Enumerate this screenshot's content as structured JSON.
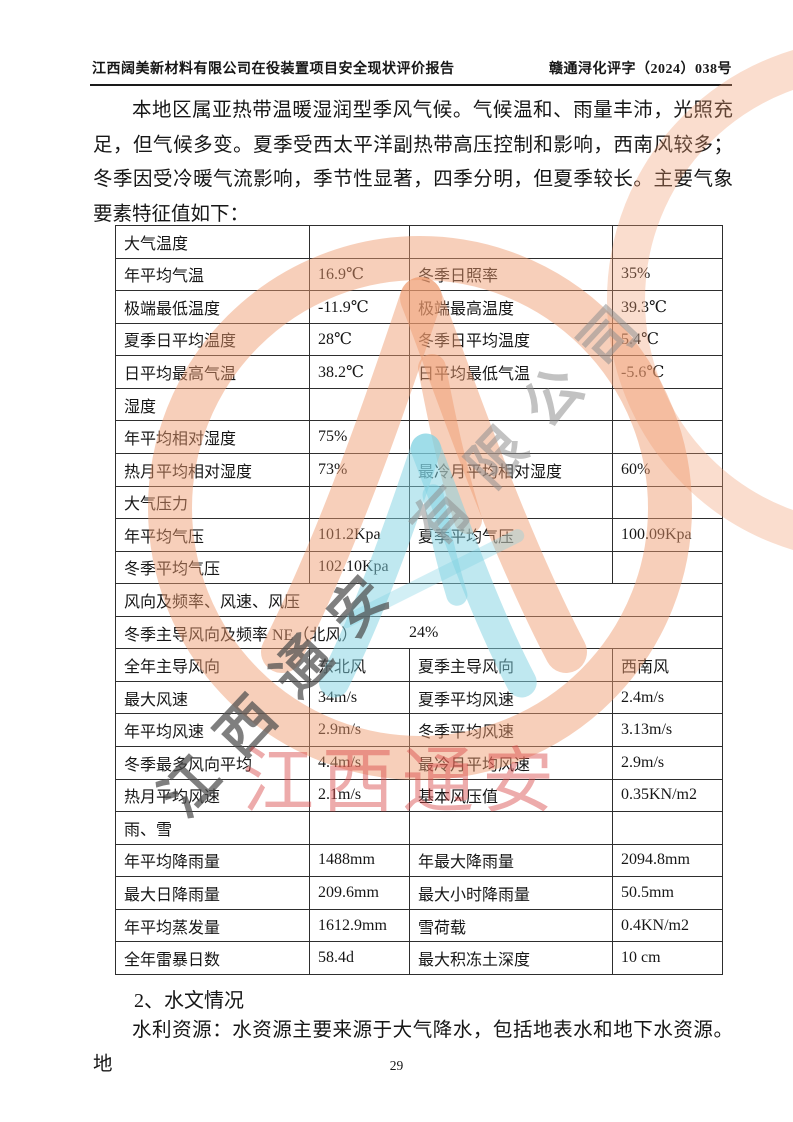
{
  "header": {
    "left": "江西阔美新材料有限公司在役装置项目安全现状评价报告",
    "right": "赣通浔化评字（2024）038号"
  },
  "paragraph": "本地区属亚热带温暖湿润型季风气候。气候温和、雨量丰沛，光照充足，但气候多变。夏季受西太平洋副热带高压控制和影响，西南风较多；冬季因受冷暖气流影响，季节性显著，四季分明，但夏季较长。主要气象要素特征值如下：",
  "table": {
    "rows": [
      {
        "cells": [
          "大气温度",
          "",
          "",
          ""
        ]
      },
      {
        "cells": [
          "年平均气温",
          "16.9℃",
          "冬季日照率",
          "35%"
        ],
        "indent3": true,
        "indent4": true
      },
      {
        "cells": [
          "极端最低温度",
          "-11.9℃",
          "极端最高温度",
          "39.3℃"
        ],
        "indent3": true,
        "indent4": true
      },
      {
        "cells": [
          "夏季日平均温度",
          "28℃",
          "冬季日平均温度",
          "5.4℃"
        ],
        "indent3": true,
        "indent4": true
      },
      {
        "cells": [
          "日平均最高气温",
          "38.2℃",
          "日平均最低气温",
          "-5.6℃"
        ],
        "indent3": true,
        "indent4": true
      },
      {
        "cells": [
          "湿度",
          "",
          "",
          ""
        ]
      },
      {
        "cells": [
          "年平均相对湿度",
          "75%",
          "",
          ""
        ]
      },
      {
        "cells": [
          "热月平均相对湿度",
          "73%",
          "最冷月平均相对湿度",
          "60%"
        ]
      },
      {
        "cells": [
          "大气压力",
          "",
          "",
          ""
        ]
      },
      {
        "cells": [
          "年平均气压",
          "101.2Kpa",
          "夏季平均气压",
          "100.09Kpa"
        ]
      },
      {
        "cells": [
          "冬季平均气压",
          "102.10Kpa",
          "",
          ""
        ]
      },
      {
        "label": "风向及频率、风速、风压"
      },
      {
        "label": "冬季主导风向及频率 NE（北风）",
        "value": "24%"
      },
      {
        "cells": [
          "全年主导风向",
          "东北风",
          "夏季主导风向",
          "西南风"
        ]
      },
      {
        "cells": [
          "最大风速",
          "34m/s",
          "夏季平均风速",
          "2.4m/s"
        ]
      },
      {
        "cells": [
          "年平均风速",
          "2.9m/s",
          "冬季平均风速",
          "3.13m/s"
        ]
      },
      {
        "cells": [
          "冬季最多风向平均",
          "4.4m/s",
          "最冷月平均风速",
          "2.9m/s"
        ]
      },
      {
        "cells": [
          "热月平均风速",
          "2.1m/s",
          "基本风压值",
          "0.35KN/m2"
        ]
      },
      {
        "cells": [
          "雨、雪",
          "",
          "",
          ""
        ]
      },
      {
        "cells": [
          "年平均降雨量",
          "1488mm",
          "年最大降雨量",
          "2094.8mm"
        ],
        "indent3": true
      },
      {
        "cells": [
          "最大日降雨量",
          "209.6mm",
          "最大小时降雨量",
          "50.5mm"
        ],
        "indent3": true
      },
      {
        "cells": [
          "年平均蒸发量",
          "1612.9mm",
          "雪荷载",
          "0.4KN/m2"
        ],
        "indent3": true
      },
      {
        "cells": [
          "全年雷暴日数",
          "58.4d",
          "最大积冻土深度",
          "10 cm"
        ],
        "indent3": true
      }
    ]
  },
  "section2": {
    "heading": "2、水文情况",
    "text": "水利资源：水资源主要来源于大气降水，包括地表水和地下水资源。地"
  },
  "page_number": "29",
  "watermark": {
    "red_text": "江西通安",
    "diagonal_dark": "江西通安",
    "diagonal_light": "有限公司",
    "seal_color": "#ef9a6e",
    "accent_color": "#7fd2e2",
    "red_color": "#d64545",
    "gray_dark": "#4d4d4d",
    "gray_light": "#909090"
  }
}
